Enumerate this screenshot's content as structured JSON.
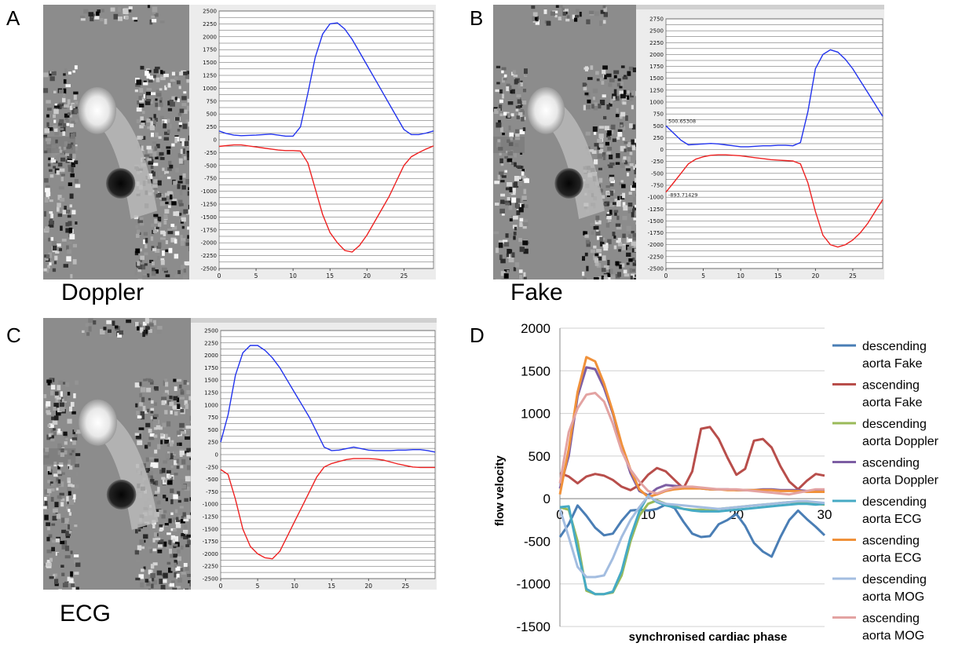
{
  "figure": {
    "panel_labels": [
      "A",
      "B",
      "C",
      "D"
    ],
    "captions": {
      "A": "Doppler",
      "B": "Fake",
      "C": "ECG"
    }
  },
  "colors": {
    "upper_trace": "#2233ee",
    "lower_trace": "#ee2222"
  },
  "chart_data": [
    {
      "id": "A",
      "type": "line",
      "title": "",
      "ylim": [
        -2500,
        2500
      ],
      "ytick_step": 250,
      "xlim": [
        0,
        29
      ],
      "xticks": [
        0,
        5,
        10,
        15,
        20,
        25
      ],
      "series": [
        {
          "name": "upper",
          "color": "#2233ee",
          "x": [
            0,
            1,
            2,
            3,
            4,
            5,
            6,
            7,
            8,
            9,
            10,
            11,
            12,
            13,
            14,
            15,
            16,
            17,
            18,
            19,
            20,
            21,
            22,
            23,
            24,
            25,
            26,
            27,
            28,
            29
          ],
          "values": [
            170,
            120,
            90,
            80,
            85,
            90,
            100,
            110,
            90,
            70,
            70,
            250,
            900,
            1600,
            2050,
            2250,
            2270,
            2150,
            1950,
            1700,
            1450,
            1200,
            950,
            700,
            450,
            200,
            100,
            100,
            130,
            170
          ]
        },
        {
          "name": "lower",
          "color": "#ee2222",
          "x": [
            0,
            1,
            2,
            3,
            4,
            5,
            6,
            7,
            8,
            9,
            10,
            11,
            12,
            13,
            14,
            15,
            16,
            17,
            18,
            19,
            20,
            21,
            22,
            23,
            24,
            25,
            26,
            27,
            28,
            29
          ],
          "values": [
            -130,
            -115,
            -100,
            -100,
            -120,
            -140,
            -160,
            -180,
            -200,
            -210,
            -210,
            -220,
            -450,
            -950,
            -1450,
            -1800,
            -2000,
            -2150,
            -2180,
            -2050,
            -1850,
            -1600,
            -1350,
            -1100,
            -800,
            -500,
            -330,
            -250,
            -180,
            -120
          ]
        }
      ]
    },
    {
      "id": "B",
      "type": "line",
      "title": "",
      "ylim": [
        -2500,
        2750
      ],
      "ytick_step": 250,
      "xlim": [
        0,
        29
      ],
      "xticks": [
        0,
        5,
        10,
        15,
        20,
        25
      ],
      "annotations": [
        "500.65308",
        "-893.71429"
      ],
      "series": [
        {
          "name": "upper",
          "color": "#2233ee",
          "x": [
            0,
            1,
            2,
            3,
            4,
            5,
            6,
            7,
            8,
            9,
            10,
            11,
            12,
            13,
            14,
            15,
            16,
            17,
            18,
            19,
            20,
            21,
            22,
            23,
            24,
            25,
            26,
            27,
            28,
            29
          ],
          "values": [
            500,
            350,
            200,
            100,
            110,
            120,
            130,
            120,
            100,
            80,
            60,
            60,
            70,
            80,
            80,
            90,
            90,
            80,
            150,
            800,
            1700,
            2000,
            2100,
            2050,
            1900,
            1700,
            1450,
            1200,
            950,
            700
          ]
        },
        {
          "name": "lower",
          "color": "#ee2222",
          "x": [
            0,
            1,
            2,
            3,
            4,
            5,
            6,
            7,
            8,
            9,
            10,
            11,
            12,
            13,
            14,
            15,
            16,
            17,
            18,
            19,
            20,
            21,
            22,
            23,
            24,
            25,
            26,
            27,
            28,
            29
          ],
          "values": [
            -893,
            -700,
            -500,
            -300,
            -200,
            -150,
            -120,
            -110,
            -110,
            -120,
            -130,
            -150,
            -170,
            -190,
            -210,
            -220,
            -230,
            -240,
            -300,
            -700,
            -1300,
            -1800,
            -2000,
            -2050,
            -2000,
            -1900,
            -1750,
            -1550,
            -1300,
            -1050
          ]
        }
      ]
    },
    {
      "id": "C",
      "type": "line",
      "title": "",
      "ylim": [
        -2500,
        2500
      ],
      "ytick_step": 250,
      "xlim": [
        0,
        29
      ],
      "xticks": [
        0,
        5,
        10,
        15,
        20,
        25
      ],
      "series": [
        {
          "name": "upper",
          "color": "#2233ee",
          "x": [
            0,
            1,
            2,
            3,
            4,
            5,
            6,
            7,
            8,
            9,
            10,
            11,
            12,
            13,
            14,
            15,
            16,
            17,
            18,
            19,
            20,
            21,
            22,
            23,
            24,
            25,
            26,
            27,
            28,
            29
          ],
          "values": [
            250,
            800,
            1600,
            2050,
            2200,
            2200,
            2100,
            1950,
            1750,
            1500,
            1250,
            1000,
            750,
            450,
            150,
            80,
            90,
            120,
            150,
            120,
            90,
            80,
            80,
            80,
            90,
            90,
            100,
            100,
            80,
            50
          ]
        },
        {
          "name": "lower",
          "color": "#ee2222",
          "x": [
            0,
            1,
            2,
            3,
            4,
            5,
            6,
            7,
            8,
            9,
            10,
            11,
            12,
            13,
            14,
            15,
            16,
            17,
            18,
            19,
            20,
            21,
            22,
            23,
            24,
            25,
            26,
            27,
            28,
            29
          ],
          "values": [
            -300,
            -400,
            -900,
            -1500,
            -1850,
            -2000,
            -2080,
            -2100,
            -1950,
            -1650,
            -1350,
            -1050,
            -750,
            -450,
            -250,
            -180,
            -140,
            -100,
            -80,
            -80,
            -80,
            -90,
            -110,
            -150,
            -190,
            -220,
            -250,
            -260,
            -260,
            -260
          ]
        }
      ]
    },
    {
      "id": "D",
      "type": "line",
      "title": "",
      "xlabel": "synchronised cardiac phase",
      "ylabel": "flow velocity",
      "ylim": [
        -1500,
        2000
      ],
      "yticks": [
        -1500,
        -1000,
        -500,
        0,
        500,
        1000,
        1500,
        2000
      ],
      "xlim": [
        0,
        30
      ],
      "xticks": [
        0,
        10,
        20,
        30
      ],
      "series": [
        {
          "name": "descending aorta Fake",
          "color": "#4a7eb5",
          "values": [
            -450,
            -300,
            -80,
            -200,
            -340,
            -430,
            -410,
            -260,
            -140,
            -130,
            -140,
            -120,
            -70,
            -110,
            -270,
            -410,
            -450,
            -440,
            -300,
            -250,
            -180,
            -320,
            -520,
            -620,
            -680,
            -450,
            -250,
            -140,
            -240,
            -330,
            -430
          ]
        },
        {
          "name": "ascending aorta Fake",
          "color": "#b84e4b",
          "values": [
            300,
            260,
            180,
            260,
            290,
            270,
            220,
            140,
            100,
            160,
            280,
            360,
            320,
            220,
            120,
            320,
            820,
            840,
            700,
            480,
            280,
            350,
            680,
            700,
            600,
            380,
            200,
            110,
            210,
            290,
            270
          ]
        },
        {
          "name": "descending aorta Doppler",
          "color": "#9aba59",
          "values": [
            -100,
            -130,
            -500,
            -1080,
            -1120,
            -1120,
            -1100,
            -900,
            -500,
            -200,
            -60,
            -20,
            -60,
            -90,
            -120,
            -130,
            -130,
            -140,
            -120,
            -110,
            -100,
            -90,
            -80,
            -70,
            -60,
            -50,
            -40,
            -40,
            -50,
            -60,
            -70
          ]
        },
        {
          "name": "ascending aorta Doppler",
          "color": "#7d5ea3",
          "values": [
            120,
            500,
            1200,
            1540,
            1520,
            1300,
            1000,
            620,
            300,
            90,
            40,
            120,
            160,
            150,
            140,
            130,
            120,
            110,
            110,
            110,
            100,
            100,
            100,
            110,
            110,
            100,
            100,
            100,
            90,
            90,
            100
          ]
        },
        {
          "name": "descending aorta ECG",
          "color": "#46aac4",
          "values": [
            -100,
            -90,
            -600,
            -1060,
            -1120,
            -1120,
            -1090,
            -850,
            -450,
            -150,
            40,
            -40,
            -80,
            -100,
            -120,
            -140,
            -150,
            -150,
            -150,
            -140,
            -130,
            -120,
            -110,
            -100,
            -90,
            -80,
            -70,
            -60,
            -60,
            -70,
            -60
          ]
        },
        {
          "name": "ascending aorta ECG",
          "color": "#f0913a",
          "values": [
            50,
            580,
            1250,
            1660,
            1610,
            1350,
            1020,
            640,
            340,
            110,
            20,
            50,
            90,
            110,
            120,
            120,
            120,
            110,
            110,
            100,
            100,
            100,
            100,
            100,
            100,
            90,
            90,
            90,
            80,
            80,
            80
          ]
        },
        {
          "name": "descending aorta MOG",
          "color": "#a3bde0",
          "values": [
            -120,
            -450,
            -800,
            -920,
            -920,
            -900,
            -700,
            -450,
            -250,
            -100,
            30,
            -30,
            -60,
            -70,
            -80,
            -90,
            -100,
            -110,
            -120,
            -110,
            -100,
            -90,
            -80,
            -70,
            -60,
            -50,
            -40,
            -30,
            -30,
            -40,
            -50
          ]
        },
        {
          "name": "ascending aorta MOG",
          "color": "#e3a3a2",
          "values": [
            180,
            780,
            1060,
            1220,
            1240,
            1140,
            880,
            560,
            340,
            200,
            90,
            60,
            100,
            130,
            140,
            140,
            130,
            120,
            110,
            110,
            110,
            100,
            90,
            80,
            70,
            60,
            50,
            70,
            90,
            110,
            110
          ]
        }
      ]
    }
  ]
}
